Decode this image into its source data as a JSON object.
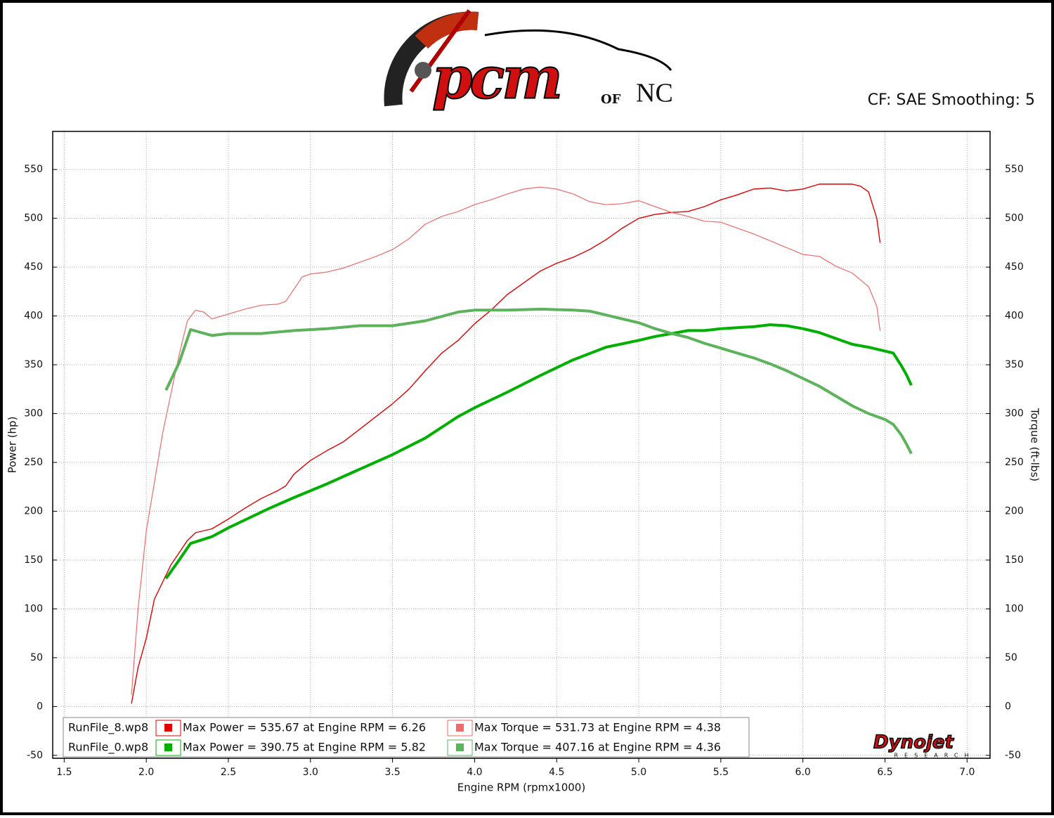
{
  "chart_data": {
    "type": "line",
    "logo": [
      "PCM",
      "OF",
      "NC"
    ],
    "subtitle": "CF: SAE Smoothing: 5",
    "xlabel": "Engine RPM (rpmx1000)",
    "ylabel": "Power (hp)",
    "y2label": "Torque (ft-lbs)",
    "xlim": [
      1.43,
      7.14
    ],
    "ylim": [
      -53,
      589
    ],
    "y2lim": [
      -53,
      589
    ],
    "xticks": [
      1.5,
      {
        "value": 2,
        "label": "2.0"
      },
      2.5,
      {
        "value": 3,
        "label": "3.0"
      },
      3.5,
      {
        "value": 4,
        "label": "4.0"
      },
      4.5,
      {
        "value": 5,
        "label": "5.0"
      },
      5.5,
      {
        "value": 6,
        "label": "6.0"
      },
      6.5,
      {
        "value": 7,
        "label": "7.0"
      }
    ],
    "yticks": [
      -50,
      0,
      50,
      100,
      150,
      200,
      250,
      300,
      350,
      400,
      450,
      500,
      550
    ],
    "y2ticks": [
      -50,
      0,
      50,
      100,
      150,
      200,
      250,
      300,
      350,
      400,
      450,
      500,
      550
    ],
    "grid": true,
    "runs": [
      "RunFile_8.wp8",
      "RunFile_0.wp8"
    ],
    "brand": [
      "Dynojet",
      "RESEARCH"
    ],
    "series": [
      {
        "name": "Max Power = 535.67 at Engine RPM = 6.26",
        "color": "#e00000",
        "width": 1.4,
        "x": [
          1.91,
          1.95,
          2.0,
          2.05,
          2.15,
          2.25,
          2.3,
          2.4,
          2.5,
          2.6,
          2.7,
          2.8,
          2.85,
          2.9,
          3.0,
          3.1,
          3.2,
          3.3,
          3.4,
          3.5,
          3.6,
          3.7,
          3.8,
          3.9,
          4.0,
          4.1,
          4.2,
          4.3,
          4.4,
          4.5,
          4.6,
          4.7,
          4.8,
          4.9,
          5.0,
          5.1,
          5.2,
          5.3,
          5.4,
          5.5,
          5.6,
          5.7,
          5.8,
          5.9,
          6.0,
          6.1,
          6.2,
          6.3,
          6.35,
          6.4,
          6.45,
          6.47
        ],
        "values": [
          3,
          40,
          70,
          110,
          145,
          170,
          178,
          182,
          192,
          203,
          213,
          221,
          226,
          238,
          252,
          262,
          271,
          284,
          297,
          310,
          325,
          344,
          362,
          375,
          392,
          406,
          422,
          434,
          446,
          454,
          460,
          468,
          478,
          490,
          500,
          504,
          506,
          507,
          512,
          519,
          524,
          530,
          531,
          528,
          530,
          535,
          535,
          535,
          533,
          527,
          500,
          475
        ]
      },
      {
        "name": "Max Torque = 531.73 at Engine RPM = 4.38",
        "color": "#ef6a6a",
        "width": 1.2,
        "axis": "y2",
        "x": [
          1.91,
          1.95,
          2.0,
          2.1,
          2.2,
          2.25,
          2.3,
          2.35,
          2.4,
          2.5,
          2.6,
          2.7,
          2.8,
          2.85,
          2.95,
          3.0,
          3.1,
          3.2,
          3.3,
          3.4,
          3.5,
          3.6,
          3.7,
          3.8,
          3.9,
          4.0,
          4.1,
          4.2,
          4.3,
          4.4,
          4.5,
          4.6,
          4.7,
          4.8,
          4.9,
          5.0,
          5.1,
          5.2,
          5.3,
          5.4,
          5.5,
          5.6,
          5.7,
          5.8,
          5.9,
          6.0,
          6.1,
          6.2,
          6.3,
          6.4,
          6.45,
          6.47
        ],
        "values": [
          12,
          100,
          180,
          280,
          360,
          395,
          406,
          404,
          397,
          402,
          407,
          411,
          412,
          415,
          440,
          443,
          445,
          449,
          455,
          461,
          468,
          479,
          494,
          502,
          507,
          514,
          519,
          525,
          530,
          532,
          530,
          525,
          517,
          514,
          515,
          518,
          512,
          506,
          502,
          497,
          496,
          490,
          484,
          477,
          470,
          463,
          461,
          451,
          444,
          430,
          410,
          385
        ]
      },
      {
        "name": "Max Power = 390.75 at Engine RPM = 5.82",
        "color": "#00b000",
        "width": 4,
        "x": [
          2.12,
          2.2,
          2.27,
          2.4,
          2.5,
          2.6,
          2.75,
          2.9,
          3.1,
          3.3,
          3.5,
          3.7,
          3.9,
          4.0,
          4.2,
          4.4,
          4.6,
          4.8,
          5.0,
          5.1,
          5.2,
          5.3,
          5.4,
          5.5,
          5.6,
          5.7,
          5.8,
          5.9,
          6.0,
          6.1,
          6.2,
          6.3,
          6.4,
          6.5,
          6.55,
          6.6,
          6.63,
          6.66
        ],
        "values": [
          131,
          150,
          167,
          174,
          183,
          191,
          203,
          214,
          228,
          243,
          258,
          275,
          297,
          306,
          322,
          339,
          355,
          368,
          375,
          379,
          382,
          385,
          385,
          387,
          388,
          389,
          391,
          390,
          387,
          383,
          377,
          371,
          368,
          364,
          362,
          349,
          340,
          329
        ]
      },
      {
        "name": "Max Torque = 407.16 at Engine RPM = 4.36",
        "color": "#5cb35c",
        "width": 4,
        "axis": "y2",
        "x": [
          2.12,
          2.2,
          2.27,
          2.4,
          2.5,
          2.7,
          2.9,
          3.1,
          3.3,
          3.5,
          3.7,
          3.9,
          4.0,
          4.2,
          4.4,
          4.6,
          4.7,
          4.8,
          5.0,
          5.1,
          5.2,
          5.3,
          5.4,
          5.5,
          5.6,
          5.7,
          5.8,
          5.9,
          6.0,
          6.1,
          6.2,
          6.3,
          6.4,
          6.5,
          6.55,
          6.6,
          6.63,
          6.66
        ],
        "values": [
          324,
          352,
          386,
          380,
          382,
          382,
          385,
          387,
          390,
          390,
          395,
          404,
          406,
          406,
          407,
          406,
          405,
          401,
          393,
          387,
          382,
          378,
          372,
          367,
          362,
          357,
          351,
          344,
          336,
          328,
          318,
          308,
          300,
          294,
          289,
          278,
          269,
          259
        ]
      }
    ]
  }
}
